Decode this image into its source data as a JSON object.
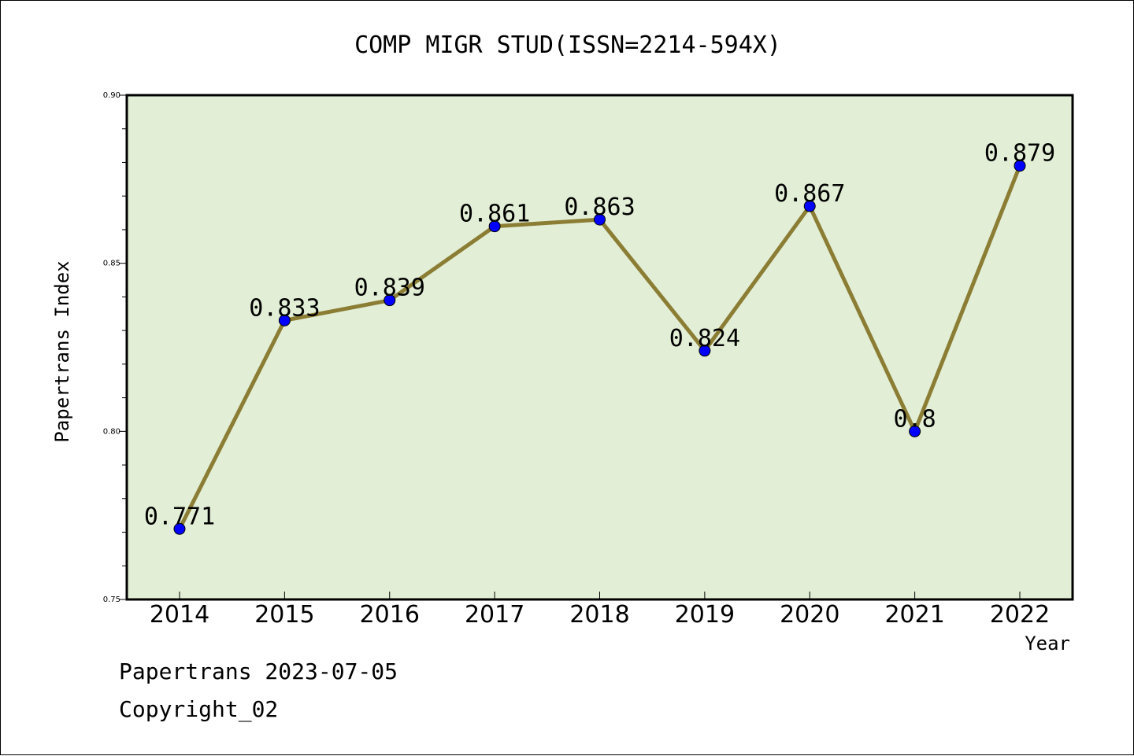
{
  "chart_data": {
    "type": "line",
    "title": "COMP MIGR STUD(ISSN=2214-594X)",
    "xlabel": "Year",
    "ylabel": "Papertrans Index",
    "categories": [
      "2014",
      "2015",
      "2016",
      "2017",
      "2018",
      "2019",
      "2020",
      "2021",
      "2022"
    ],
    "series": [
      {
        "values": [
          0.771,
          0.833,
          0.839,
          0.861,
          0.863,
          0.824,
          0.867,
          0.8,
          0.879
        ],
        "data_labels": [
          "0.771",
          "0.833",
          "0.839",
          "0.861",
          "0.863",
          "0.824",
          "0.867",
          "0.8",
          "0.879"
        ]
      }
    ],
    "ylim": [
      0.75,
      0.9
    ],
    "yticks": [
      "0.75",
      "0.80",
      "0.85",
      "0.90"
    ],
    "grid": false,
    "colors": {
      "plot_background": "#e2efd6",
      "line": "#8b7d34",
      "marker": "#0000ff"
    }
  },
  "footer": {
    "date_line": "Papertrans 2023-07-05",
    "copyright": "Copyright_02"
  }
}
